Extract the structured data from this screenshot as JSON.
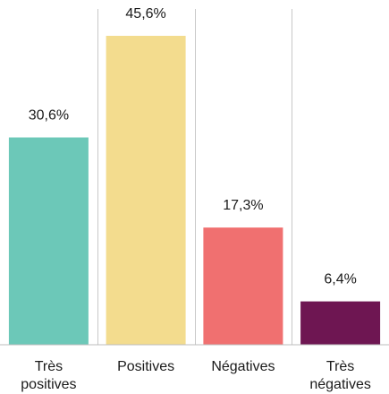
{
  "chart_data": {
    "type": "bar",
    "categories": [
      [
        "Très",
        "positives"
      ],
      [
        "Positives"
      ],
      [
        "Négatives"
      ],
      [
        "Très",
        "négatives"
      ]
    ],
    "values": [
      30.6,
      45.6,
      17.3,
      6.4
    ],
    "value_labels": [
      "30,6%",
      "45,6%",
      "17,3%",
      "6,4%"
    ],
    "colors": [
      "#6cc8b8",
      "#f3dc8e",
      "#f07070",
      "#6e1652"
    ],
    "ylim": [
      0,
      50
    ],
    "grid": "vertical separators between categories",
    "legend": "none"
  }
}
